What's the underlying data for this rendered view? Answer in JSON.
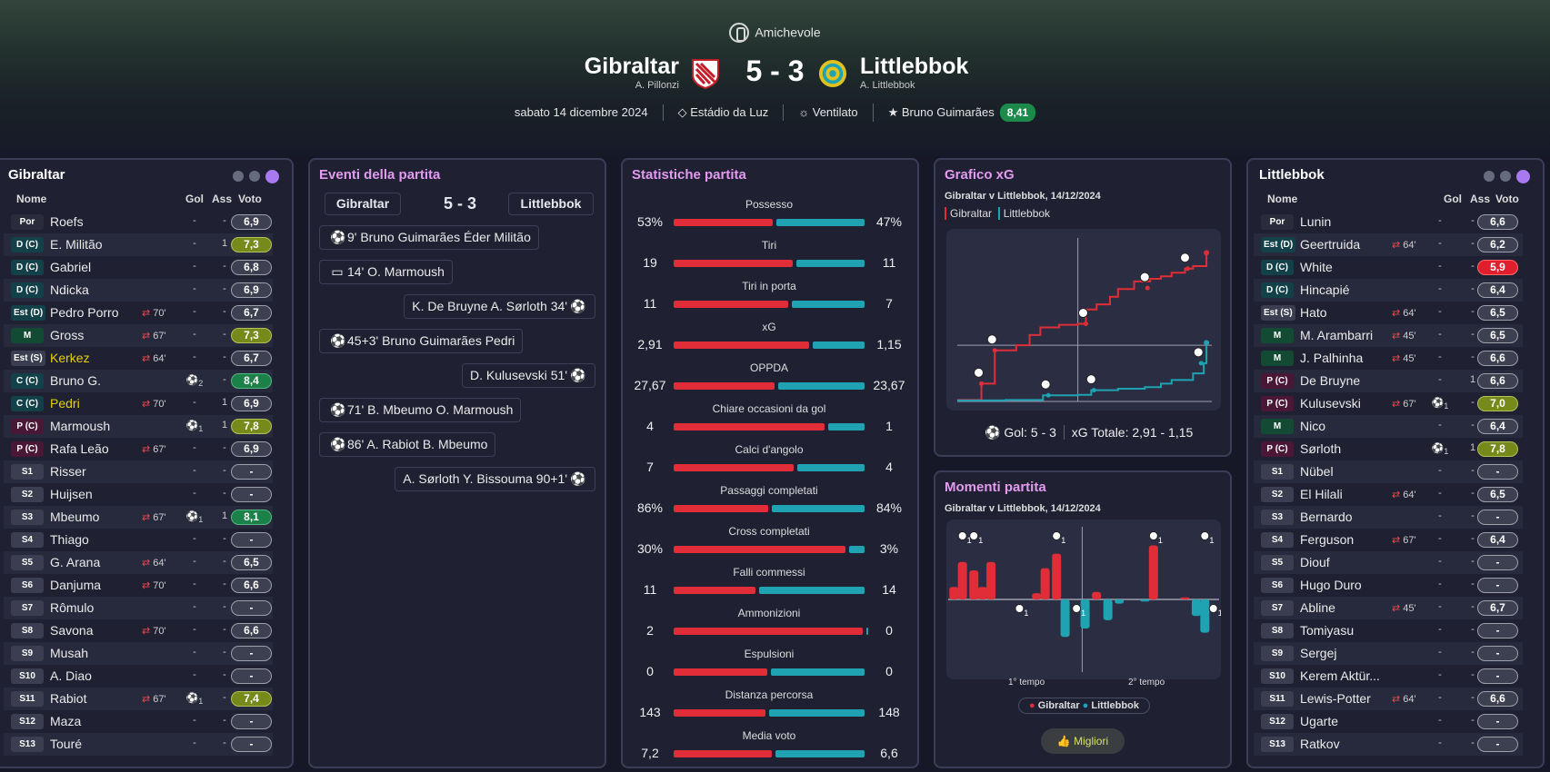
{
  "header": {
    "competition": "Amichevole",
    "home_team": "Gibraltar",
    "home_coach": "A. Pillonzi",
    "away_team": "Littlebbok",
    "away_coach": "A. Littlebbok",
    "score": "5 - 3",
    "date": "sabato 14 dicembre 2024",
    "stadium": "Estádio da Luz",
    "weather": "Ventilato",
    "mvp": "Bruno Guimarães",
    "mvp_rating": "8,41",
    "colors": {
      "home": "#e02d37",
      "away": "#1fa2b2",
      "accent": "#e39bf0"
    }
  },
  "columns": {
    "name": "Nome",
    "goals": "Gol",
    "assists": "Ass",
    "rating": "Voto"
  },
  "home_players": [
    {
      "pos": "Por",
      "name": "Roefs",
      "sub": "",
      "goals": "-",
      "assists": "-",
      "rating": "6,9"
    },
    {
      "pos": "D (C)",
      "name": "E. Militão",
      "sub": "",
      "goals": "-",
      "assists": "1",
      "rating": "7,3"
    },
    {
      "pos": "D (C)",
      "name": "Gabriel",
      "sub": "",
      "goals": "-",
      "assists": "-",
      "rating": "6,8"
    },
    {
      "pos": "D (C)",
      "name": "Ndicka",
      "sub": "",
      "goals": "-",
      "assists": "-",
      "rating": "6,9"
    },
    {
      "pos": "Est (D)",
      "name": "Pedro Porro",
      "sub": "70'",
      "goals": "-",
      "assists": "-",
      "rating": "6,7"
    },
    {
      "pos": "M",
      "name": "Gross",
      "sub": "67'",
      "goals": "-",
      "assists": "-",
      "rating": "7,3"
    },
    {
      "pos": "Est (S)",
      "name": "Kerkez",
      "sub": "64'",
      "goals": "-",
      "assists": "-",
      "rating": "6,7"
    },
    {
      "pos": "C (C)",
      "name": "Bruno G.",
      "sub": "",
      "goals": "2",
      "assists": "-",
      "rating": "8,4"
    },
    {
      "pos": "C (C)",
      "name": "Pedri",
      "sub": "70'",
      "goals": "-",
      "assists": "1",
      "rating": "6,9"
    },
    {
      "pos": "P (C)",
      "name": "Marmoush",
      "sub": "",
      "goals": "1",
      "assists": "1",
      "rating": "7,8"
    },
    {
      "pos": "P (C)",
      "name": "Rafa Leão",
      "sub": "67'",
      "goals": "-",
      "assists": "-",
      "rating": "6,9"
    },
    {
      "pos": "S1",
      "name": "Risser",
      "sub": "",
      "goals": "-",
      "assists": "-",
      "rating": "-"
    },
    {
      "pos": "S2",
      "name": "Huijsen",
      "sub": "",
      "goals": "-",
      "assists": "-",
      "rating": "-"
    },
    {
      "pos": "S3",
      "name": "Mbeumo",
      "sub": "67'",
      "goals": "1",
      "assists": "1",
      "rating": "8,1"
    },
    {
      "pos": "S4",
      "name": "Thiago",
      "sub": "",
      "goals": "-",
      "assists": "-",
      "rating": "-"
    },
    {
      "pos": "S5",
      "name": "G. Arana",
      "sub": "64'",
      "goals": "-",
      "assists": "-",
      "rating": "6,5"
    },
    {
      "pos": "S6",
      "name": "Danjuma",
      "sub": "70'",
      "goals": "-",
      "assists": "-",
      "rating": "6,6"
    },
    {
      "pos": "S7",
      "name": "Rômulo",
      "sub": "",
      "goals": "-",
      "assists": "-",
      "rating": "-"
    },
    {
      "pos": "S8",
      "name": "Savona",
      "sub": "70'",
      "goals": "-",
      "assists": "-",
      "rating": "6,6"
    },
    {
      "pos": "S9",
      "name": "Musah",
      "sub": "",
      "goals": "-",
      "assists": "-",
      "rating": "-"
    },
    {
      "pos": "S10",
      "name": "A. Diao",
      "sub": "",
      "goals": "-",
      "assists": "-",
      "rating": "-"
    },
    {
      "pos": "S11",
      "name": "Rabiot",
      "sub": "67'",
      "goals": "1",
      "assists": "-",
      "rating": "7,4"
    },
    {
      "pos": "S12",
      "name": "Maza",
      "sub": "",
      "goals": "-",
      "assists": "-",
      "rating": "-"
    },
    {
      "pos": "S13",
      "name": "Touré",
      "sub": "",
      "goals": "-",
      "assists": "-",
      "rating": "-"
    }
  ],
  "away_players": [
    {
      "pos": "Por",
      "name": "Lunin",
      "sub": "",
      "goals": "-",
      "assists": "-",
      "rating": "6,6"
    },
    {
      "pos": "Est (D)",
      "name": "Geertruida",
      "sub": "64'",
      "goals": "-",
      "assists": "-",
      "rating": "6,2"
    },
    {
      "pos": "D (C)",
      "name": "White",
      "sub": "",
      "goals": "-",
      "assists": "-",
      "rating": "5,9"
    },
    {
      "pos": "D (C)",
      "name": "Hincapié",
      "sub": "",
      "goals": "-",
      "assists": "-",
      "rating": "6,4"
    },
    {
      "pos": "Est (S)",
      "name": "Hato",
      "sub": "64'",
      "goals": "-",
      "assists": "-",
      "rating": "6,5"
    },
    {
      "pos": "M",
      "name": "M. Arambarri",
      "sub": "45'",
      "goals": "-",
      "assists": "-",
      "rating": "6,5"
    },
    {
      "pos": "M",
      "name": "J. Palhinha",
      "sub": "45'",
      "goals": "-",
      "assists": "-",
      "rating": "6,6"
    },
    {
      "pos": "P (C)",
      "name": "De Bruyne",
      "sub": "",
      "goals": "-",
      "assists": "1",
      "rating": "6,6"
    },
    {
      "pos": "P (C)",
      "name": "Kulusevski",
      "sub": "67'",
      "goals": "1",
      "assists": "-",
      "rating": "7,0"
    },
    {
      "pos": "M",
      "name": "Nico",
      "sub": "",
      "goals": "-",
      "assists": "-",
      "rating": "6,4"
    },
    {
      "pos": "P (C)",
      "name": "Sørloth",
      "sub": "",
      "goals": "1",
      "assists": "1",
      "rating": "7,8"
    },
    {
      "pos": "S1",
      "name": "Nübel",
      "sub": "",
      "goals": "-",
      "assists": "-",
      "rating": "-"
    },
    {
      "pos": "S2",
      "name": "El Hilali",
      "sub": "64'",
      "goals": "-",
      "assists": "-",
      "rating": "6,5"
    },
    {
      "pos": "S3",
      "name": "Bernardo",
      "sub": "",
      "goals": "-",
      "assists": "-",
      "rating": "-"
    },
    {
      "pos": "S4",
      "name": "Ferguson",
      "sub": "67'",
      "goals": "-",
      "assists": "-",
      "rating": "6,4"
    },
    {
      "pos": "S5",
      "name": "Diouf",
      "sub": "",
      "goals": "-",
      "assists": "-",
      "rating": "-"
    },
    {
      "pos": "S6",
      "name": "Hugo Duro",
      "sub": "",
      "goals": "-",
      "assists": "-",
      "rating": "-"
    },
    {
      "pos": "S7",
      "name": "Abline",
      "sub": "45'",
      "goals": "-",
      "assists": "-",
      "rating": "6,7"
    },
    {
      "pos": "S8",
      "name": "Tomiyasu",
      "sub": "",
      "goals": "-",
      "assists": "-",
      "rating": "-"
    },
    {
      "pos": "S9",
      "name": "Sergej",
      "sub": "",
      "goals": "-",
      "assists": "-",
      "rating": "-"
    },
    {
      "pos": "S10",
      "name": "Kerem Aktür...",
      "sub": "",
      "goals": "-",
      "assists": "-",
      "rating": "-"
    },
    {
      "pos": "S11",
      "name": "Lewis-Potter",
      "sub": "64'",
      "goals": "-",
      "assists": "-",
      "rating": "6,6"
    },
    {
      "pos": "S12",
      "name": "Ugarte",
      "sub": "",
      "goals": "-",
      "assists": "-",
      "rating": "-"
    },
    {
      "pos": "S13",
      "name": "Ratkov",
      "sub": "",
      "goals": "-",
      "assists": "-",
      "rating": "-"
    }
  ],
  "events": {
    "title": "Eventi della partita",
    "home": "Gibraltar",
    "away": "Littlebbok",
    "score": "5 - 3",
    "items": [
      {
        "side": "home",
        "type": "goal",
        "text": "9'  Bruno Guimarães  Éder Militão"
      },
      {
        "side": "home",
        "type": "var",
        "text": "14'  O. Marmoush"
      },
      {
        "side": "away",
        "type": "goal",
        "text": "K. De Bruyne  A. Sørloth  34'"
      },
      {
        "side": "home",
        "type": "goal",
        "text": "45+3'  Bruno Guimarães  Pedri"
      },
      {
        "side": "away",
        "type": "goal",
        "text": "D. Kulusevski  51'"
      },
      {
        "side": "home",
        "type": "goal",
        "text": "71'  B. Mbeumo  O. Marmoush"
      },
      {
        "side": "home",
        "type": "goal",
        "text": "86'  A. Rabiot  B. Mbeumo"
      },
      {
        "side": "away",
        "type": "goal",
        "text": "A. Sørloth  Y. Bissouma  90+1'"
      }
    ]
  },
  "stats": {
    "title": "Statistiche partita",
    "items": [
      {
        "label": "Possesso",
        "home": "53%",
        "away": "47%",
        "h": 53,
        "a": 47
      },
      {
        "label": "Tiri",
        "home": "19",
        "away": "11",
        "h": 19,
        "a": 11
      },
      {
        "label": "Tiri in porta",
        "home": "11",
        "away": "7",
        "h": 11,
        "a": 7
      },
      {
        "label": "xG",
        "home": "2,91",
        "away": "1,15",
        "h": 2.91,
        "a": 1.15
      },
      {
        "label": "OPPDA",
        "home": "27,67",
        "away": "23,67",
        "h": 27.67,
        "a": 23.67
      },
      {
        "label": "Chiare occasioni da gol",
        "home": "4",
        "away": "1",
        "h": 4,
        "a": 1
      },
      {
        "label": "Calci d'angolo",
        "home": "7",
        "away": "4",
        "h": 7,
        "a": 4
      },
      {
        "label": "Passaggi completati",
        "home": "86%",
        "away": "84%",
        "h": 86,
        "a": 84
      },
      {
        "label": "Cross completati",
        "home": "30%",
        "away": "3%",
        "h": 30,
        "a": 3
      },
      {
        "label": "Falli commessi",
        "home": "11",
        "away": "14",
        "h": 11,
        "a": 14
      },
      {
        "label": "Ammonizioni",
        "home": "2",
        "away": "0",
        "h": 2,
        "a": 0
      },
      {
        "label": "Espulsioni",
        "home": "0",
        "away": "0",
        "h": 0,
        "a": 0
      },
      {
        "label": "Distanza percorsa",
        "home": "143",
        "away": "148",
        "h": 143,
        "a": 148
      },
      {
        "label": "Media voto",
        "home": "7,2",
        "away": "6,6",
        "h": 7.2,
        "a": 6.6
      }
    ]
  },
  "xg_panel": {
    "title": "Grafico xG",
    "subtitle": "Gibraltar v Littlebbok, 14/12/2024",
    "legend_home": "Gibraltar",
    "legend_away": "Littlebbok",
    "goals_label": "Gol: 5 - 3",
    "xg_total_label": "xG Totale: 2,91 - 1,15"
  },
  "momentum_panel": {
    "title": "Momenti partita",
    "subtitle": "Gibraltar v Littlebbok, 14/12/2024",
    "first_half": "1° tempo",
    "second_half": "2° tempo",
    "legend_home": "Gibraltar",
    "legend_away": "Littlebbok",
    "best_button": "Migliori"
  },
  "chart_data": [
    {
      "type": "line",
      "title": "Grafico xG",
      "xlim": [
        0,
        95
      ],
      "ylim": [
        0,
        3.2
      ],
      "grid": false,
      "series": [
        {
          "name": "Gibraltar",
          "x": [
            0,
            9,
            14,
            22,
            27,
            31,
            38,
            45,
            48,
            52,
            57,
            60,
            66,
            72,
            76,
            80,
            85,
            88,
            93
          ],
          "y": [
            0.03,
            0.35,
            1.0,
            1.1,
            1.3,
            1.45,
            1.5,
            1.52,
            1.8,
            1.9,
            2.05,
            2.2,
            2.35,
            2.4,
            2.45,
            2.52,
            2.6,
            2.65,
            2.91
          ]
        },
        {
          "name": "Littlebbok",
          "x": [
            0,
            18,
            32,
            45,
            50,
            60,
            70,
            76,
            80,
            88,
            92,
            93
          ],
          "y": [
            0.02,
            0.03,
            0.12,
            0.13,
            0.22,
            0.25,
            0.28,
            0.35,
            0.42,
            0.55,
            0.75,
            1.15
          ]
        }
      ],
      "goals": [
        {
          "team": "Gibraltar",
          "x": 9,
          "y": 0.35
        },
        {
          "team": "Gibraltar",
          "x": 14,
          "y": 1.0
        },
        {
          "team": "Gibraltar",
          "x": 48,
          "y": 1.52
        },
        {
          "team": "Gibraltar",
          "x": 71,
          "y": 2.22
        },
        {
          "team": "Gibraltar",
          "x": 86,
          "y": 2.6
        },
        {
          "team": "Littlebbok",
          "x": 34,
          "y": 0.12
        },
        {
          "team": "Littlebbok",
          "x": 51,
          "y": 0.22
        },
        {
          "team": "Littlebbok",
          "x": 91,
          "y": 0.75
        }
      ]
    },
    {
      "type": "bar",
      "title": "Momenti partita",
      "categories": [
        2,
        5,
        9,
        12,
        15,
        19,
        22,
        31,
        34,
        38,
        41,
        45,
        48,
        52,
        56,
        60,
        64,
        69,
        72,
        77,
        83,
        87,
        90,
        93
      ],
      "series": [
        {
          "name": "Gibraltar",
          "values": [
            0.3,
            0.9,
            0.7,
            0.3,
            0.9,
            0,
            0,
            0.15,
            0.75,
            1.1,
            0,
            0,
            0,
            0.18,
            0,
            0,
            0,
            0,
            1.3,
            0,
            0.05,
            0,
            0,
            0
          ]
        },
        {
          "name": "Littlebbok",
          "values": [
            0,
            0,
            0,
            0,
            0,
            0,
            0,
            0,
            0,
            0,
            0.9,
            0,
            0.7,
            0,
            0.5,
            0.1,
            0,
            0.05,
            0,
            0,
            0,
            0.4,
            0.8,
            0
          ]
        }
      ],
      "goal_markers": [
        {
          "team": "Gibraltar",
          "x": 5,
          "count": "1"
        },
        {
          "team": "Gibraltar",
          "x": 9,
          "count": "1"
        },
        {
          "team": "Gibraltar",
          "x": 38,
          "count": "1"
        },
        {
          "team": "Gibraltar",
          "x": 72,
          "count": "1"
        },
        {
          "team": "Gibraltar",
          "x": 90,
          "count": "1"
        },
        {
          "team": "Littlebbok",
          "x": 25,
          "count": "1"
        },
        {
          "team": "Littlebbok",
          "x": 45,
          "count": "1"
        },
        {
          "team": "Littlebbok",
          "x": 93,
          "count": "1"
        }
      ]
    }
  ]
}
